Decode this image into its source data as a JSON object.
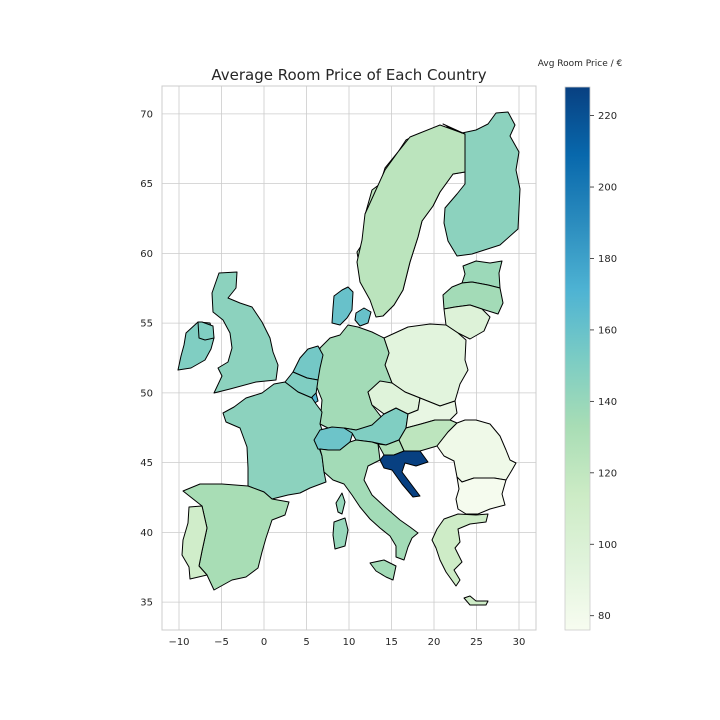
{
  "chart_data": {
    "type": "choropleth_map",
    "title": "Average Room Price of Each Country",
    "colorbar_label": "Avg Room Price / €",
    "colormap": "GnBu",
    "color_range": [
      76,
      228
    ],
    "colorbar_ticks": [
      "80",
      "100",
      "120",
      "140",
      "160",
      "180",
      "200",
      "220"
    ],
    "colorbar_tick_values": [
      80,
      100,
      120,
      140,
      160,
      180,
      200,
      220
    ],
    "x_ticks": [
      "−10",
      "−5",
      "0",
      "5",
      "10",
      "15",
      "20",
      "25",
      "30"
    ],
    "x_tick_values": [
      -10,
      -5,
      0,
      5,
      10,
      15,
      20,
      25,
      30
    ],
    "y_ticks": [
      "35",
      "40",
      "45",
      "50",
      "55",
      "60",
      "65",
      "70"
    ],
    "y_tick_values": [
      35,
      40,
      45,
      50,
      55,
      60,
      65,
      70
    ],
    "xlim": [
      -12,
      32
    ],
    "ylim": [
      33,
      72
    ],
    "grid": true,
    "regions": [
      {
        "id": "norway",
        "value": 123
      },
      {
        "id": "sweden",
        "value": 123
      },
      {
        "id": "finland",
        "value": 145
      },
      {
        "id": "estonia",
        "value": 138
      },
      {
        "id": "latvia",
        "value": 135
      },
      {
        "id": "lithuania",
        "value": 98
      },
      {
        "id": "poland",
        "value": 93
      },
      {
        "id": "germany",
        "value": 135
      },
      {
        "id": "denmark",
        "value": 160
      },
      {
        "id": "netherlands",
        "value": 155
      },
      {
        "id": "belgium",
        "value": 150
      },
      {
        "id": "luxembourg",
        "value": 170
      },
      {
        "id": "france",
        "value": 145
      },
      {
        "id": "switzerland",
        "value": 158
      },
      {
        "id": "austria",
        "value": 150
      },
      {
        "id": "czechia",
        "value": 96
      },
      {
        "id": "slovakia",
        "value": 88
      },
      {
        "id": "hungary",
        "value": 122
      },
      {
        "id": "slovenia",
        "value": 130
      },
      {
        "id": "croatia",
        "value": 228
      },
      {
        "id": "romania",
        "value": 83
      },
      {
        "id": "bulgaria",
        "value": 78
      },
      {
        "id": "greece",
        "value": 112
      },
      {
        "id": "crete",
        "value": 112
      },
      {
        "id": "italy",
        "value": 135
      },
      {
        "id": "sicily",
        "value": 135
      },
      {
        "id": "sardinia",
        "value": 140
      },
      {
        "id": "corsica",
        "value": 140
      },
      {
        "id": "spain",
        "value": 133
      },
      {
        "id": "portugal",
        "value": 110
      },
      {
        "id": "great_britain",
        "value": 145
      },
      {
        "id": "ireland",
        "value": 150
      },
      {
        "id": "northern_ireland",
        "value": 150
      }
    ]
  }
}
